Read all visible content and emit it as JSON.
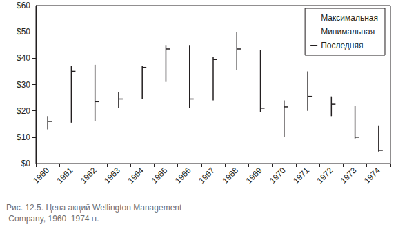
{
  "chart_data": {
    "type": "hlc",
    "title": "Рис. 12.5. Цена акций Wellington Management Company, 1960–1974 гг.",
    "categories": [
      "1960",
      "1961",
      "1962",
      "1963",
      "1964",
      "1965",
      "1966",
      "1967",
      "1968",
      "1969",
      "1970",
      "1971",
      "1972",
      "1973",
      "1974"
    ],
    "series": [
      {
        "name": "Максимальная",
        "color": "#231f20",
        "marker": "none",
        "values": [
          18,
          37,
          37.5,
          27,
          37,
          45,
          45,
          40.5,
          50,
          43,
          24,
          35,
          25.5,
          22,
          14.5
        ]
      },
      {
        "name": "Минимальная",
        "color": "#231f20",
        "marker": "none",
        "values": [
          13,
          15.5,
          16,
          21,
          24.5,
          31,
          21,
          24,
          35.5,
          19.5,
          10,
          20,
          18,
          9.5,
          4.5
        ]
      },
      {
        "name": "Последняя",
        "color": "#231f20",
        "marker": "dash",
        "values": [
          16,
          35,
          23.5,
          24.5,
          36.5,
          43.5,
          24.5,
          39.5,
          43.5,
          21,
          21.5,
          25.5,
          22.5,
          10,
          5
        ]
      }
    ],
    "ylim": [
      0,
      60
    ],
    "yticks": [
      {
        "value": 0,
        "label": "$0"
      },
      {
        "value": 10,
        "label": "$10"
      },
      {
        "value": 20,
        "label": "$20"
      },
      {
        "value": 30,
        "label": "$30"
      },
      {
        "value": 40,
        "label": "$40"
      },
      {
        "value": 50,
        "label": "$50"
      },
      {
        "value": 60,
        "label": "$60"
      }
    ],
    "grid": false,
    "legend": "upper right"
  }
}
